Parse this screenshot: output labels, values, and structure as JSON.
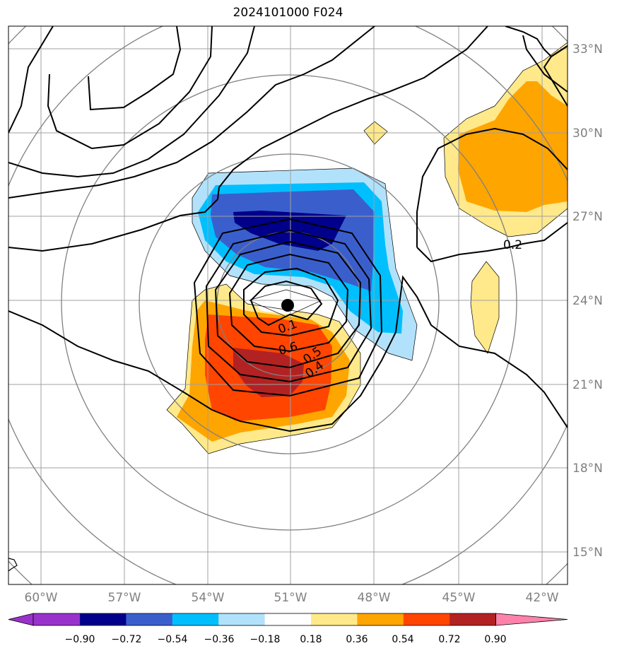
{
  "title": "2024101000 F024",
  "map": {
    "lon_labels": [
      "60°W",
      "57°W",
      "54°W",
      "51°W",
      "48°W",
      "45°W",
      "42°W"
    ],
    "lat_labels": [
      "33°N",
      "30°N",
      "27°N",
      "24°N",
      "21°N",
      "18°N",
      "15°N"
    ],
    "storm_center": {
      "lon": -51.0,
      "lat": 23.8
    }
  },
  "contour_labels": [
    "0.1",
    "0.6",
    "0.5",
    "0.4",
    "0.2"
  ],
  "colorbar": {
    "ticks": [
      "−0.90",
      "−0.72",
      "−0.54",
      "−0.36",
      "−0.18",
      "0.18",
      "0.36",
      "0.54",
      "0.72",
      "0.90"
    ],
    "colors": [
      "#9932cc",
      "#00008b",
      "#3a5fcd",
      "#00bfff",
      "#b2e2fb",
      "#ffffff",
      "#ffe98a",
      "#ffa500",
      "#ff4500",
      "#b22222",
      "#ff82ab"
    ]
  }
}
